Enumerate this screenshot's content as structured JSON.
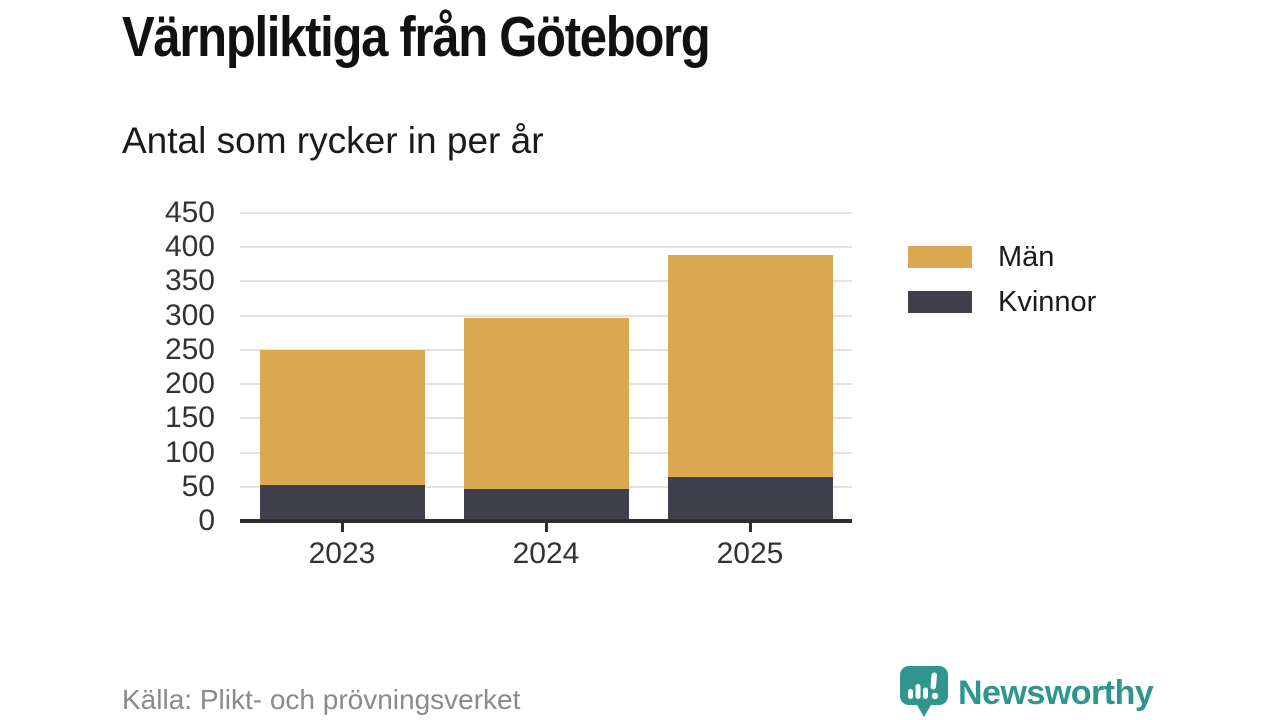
{
  "footer": {
    "source": "Källa: Plikt- och prövningsverket",
    "brand": {
      "name": "Newsworthy",
      "icon": "bar-chart-speech-bubble-icon"
    }
  },
  "colors": {
    "bg": "#ffffff",
    "title": "#111111",
    "subtitle": "#1a1a1a",
    "axis": "#333333",
    "grid": "#e2e2e2",
    "axisline": "#2e2e38",
    "source": "#8a8a8a",
    "teal": "#2e968c"
  },
  "chart_data": {
    "type": "bar",
    "stacked": true,
    "title": "Värnpliktiga från Göteborg",
    "subtitle": "Antal som rycker in per år",
    "categories": [
      "2023",
      "2024",
      "2025"
    ],
    "series": [
      {
        "name": "Män",
        "color": "#d9a851",
        "values": [
          198,
          249,
          325
        ]
      },
      {
        "name": "Kvinnor",
        "color": "#403f4c",
        "values": [
          52,
          47,
          64
        ]
      }
    ],
    "stacked_totals": [
      250,
      296,
      389
    ],
    "stack_order_bottom_to_top": [
      "Kvinnor",
      "Män"
    ],
    "xlabel": "",
    "ylabel": "",
    "ylim": [
      0,
      450
    ],
    "yticks": [
      0,
      50,
      100,
      150,
      200,
      250,
      300,
      350,
      400,
      450
    ],
    "grid": true,
    "legend_position": "right"
  }
}
